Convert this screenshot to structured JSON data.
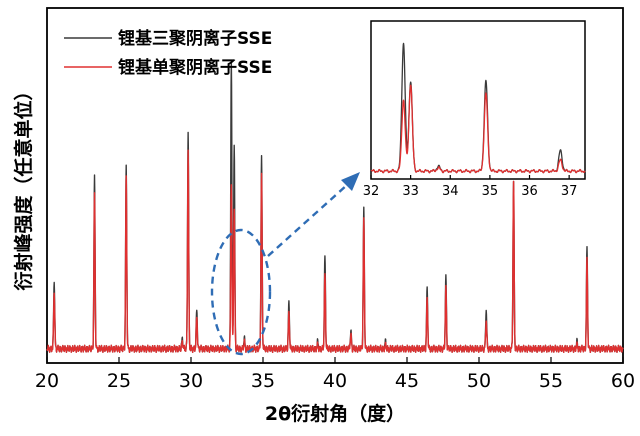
{
  "chart_data": [
    {
      "type": "line",
      "title": "",
      "xlabel": "2θ衍射角（度）",
      "ylabel": "衍射峰强度（任意单位）",
      "xlim": [
        20,
        60
      ],
      "ylim": [
        0,
        1
      ],
      "x_ticks": [
        "20",
        "25",
        "30",
        "35",
        "40",
        "45",
        "50",
        "55",
        "60"
      ],
      "y_ticks_shown": false,
      "legend_position": "top-left",
      "series": [
        {
          "name": "锂基三聚阴离子SSE",
          "color": "#3a3a3a",
          "baseline": 0.04,
          "peaks": [
            {
              "x": 20.5,
              "y": 0.23
            },
            {
              "x": 23.3,
              "y": 0.52
            },
            {
              "x": 25.5,
              "y": 0.55
            },
            {
              "x": 29.4,
              "y": 0.07
            },
            {
              "x": 29.8,
              "y": 0.65
            },
            {
              "x": 30.4,
              "y": 0.15
            },
            {
              "x": 32.8,
              "y": 0.86
            },
            {
              "x": 33.0,
              "y": 0.62
            },
            {
              "x": 33.7,
              "y": 0.07
            },
            {
              "x": 34.9,
              "y": 0.58
            },
            {
              "x": 36.8,
              "y": 0.17
            },
            {
              "x": 38.8,
              "y": 0.06
            },
            {
              "x": 39.3,
              "y": 0.3
            },
            {
              "x": 41.1,
              "y": 0.09
            },
            {
              "x": 42.0,
              "y": 0.43
            },
            {
              "x": 43.5,
              "y": 0.06
            },
            {
              "x": 46.4,
              "y": 0.21
            },
            {
              "x": 47.7,
              "y": 0.24
            },
            {
              "x": 50.5,
              "y": 0.15
            },
            {
              "x": 52.4,
              "y": 0.51
            },
            {
              "x": 56.8,
              "y": 0.06
            },
            {
              "x": 57.5,
              "y": 0.32
            }
          ]
        },
        {
          "name": "锂基单聚阴离子SSE",
          "color": "#e03030",
          "baseline": 0.04,
          "peaks": [
            {
              "x": 20.5,
              "y": 0.2
            },
            {
              "x": 23.3,
              "y": 0.47
            },
            {
              "x": 25.5,
              "y": 0.52
            },
            {
              "x": 29.4,
              "y": 0.06
            },
            {
              "x": 29.8,
              "y": 0.6
            },
            {
              "x": 30.4,
              "y": 0.13
            },
            {
              "x": 32.8,
              "y": 0.51
            },
            {
              "x": 33.0,
              "y": 0.44
            },
            {
              "x": 33.7,
              "y": 0.06
            },
            {
              "x": 34.9,
              "y": 0.53
            },
            {
              "x": 36.8,
              "y": 0.14
            },
            {
              "x": 38.8,
              "y": 0.05
            },
            {
              "x": 39.3,
              "y": 0.25
            },
            {
              "x": 41.1,
              "y": 0.08
            },
            {
              "x": 42.0,
              "y": 0.4
            },
            {
              "x": 43.5,
              "y": 0.05
            },
            {
              "x": 46.4,
              "y": 0.18
            },
            {
              "x": 47.7,
              "y": 0.21
            },
            {
              "x": 50.5,
              "y": 0.12
            },
            {
              "x": 52.4,
              "y": 0.51
            },
            {
              "x": 56.8,
              "y": 0.05
            },
            {
              "x": 57.5,
              "y": 0.29
            }
          ]
        }
      ]
    },
    {
      "type": "line",
      "title": "",
      "xlabel": "",
      "ylabel": "",
      "xlim": [
        32,
        37.4
      ],
      "ylim": [
        0,
        1
      ],
      "x_ticks": [
        "32",
        "33",
        "34",
        "35",
        "36",
        "37"
      ],
      "series": [
        {
          "name": "锂基三聚阴离子SSE",
          "color": "#3a3a3a",
          "baseline": 0.05,
          "peaks": [
            {
              "x": 32.82,
              "y": 0.86
            },
            {
              "x": 33.0,
              "y": 0.62
            },
            {
              "x": 33.7,
              "y": 0.08
            },
            {
              "x": 34.9,
              "y": 0.62
            },
            {
              "x": 36.78,
              "y": 0.18
            }
          ]
        },
        {
          "name": "锂基单聚阴离子SSE",
          "color": "#e03030",
          "baseline": 0.05,
          "peaks": [
            {
              "x": 32.82,
              "y": 0.5
            },
            {
              "x": 33.0,
              "y": 0.6
            },
            {
              "x": 33.7,
              "y": 0.07
            },
            {
              "x": 34.9,
              "y": 0.54
            },
            {
              "x": 36.78,
              "y": 0.12
            }
          ]
        }
      ]
    }
  ]
}
